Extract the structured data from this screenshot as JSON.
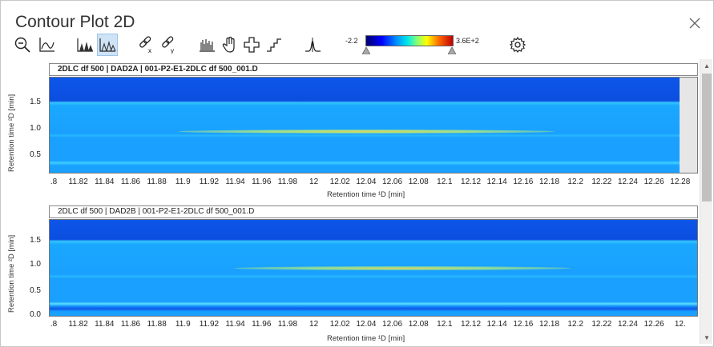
{
  "window": {
    "title": "Contour Plot 2D"
  },
  "toolbar": {
    "items": [
      {
        "name": "zoom-out-icon",
        "active": false
      },
      {
        "name": "axis-chart-icon",
        "active": false
      },
      {
        "name": "peaks-filled-icon",
        "active": false
      },
      {
        "name": "peaks-outline-icon",
        "active": true
      },
      {
        "name": "link-x-icon",
        "active": false
      },
      {
        "name": "link-y-icon",
        "active": false
      },
      {
        "name": "spectrum-icon",
        "active": false
      },
      {
        "name": "hand-pan-icon",
        "active": false
      },
      {
        "name": "crosshair-icon",
        "active": false
      },
      {
        "name": "step-icon",
        "active": false
      },
      {
        "name": "peak-shape-icon",
        "active": false
      },
      {
        "name": "gear-icon",
        "active": false
      }
    ]
  },
  "colorbar": {
    "min_label": "-2.2",
    "max_label": "3.6E+2"
  },
  "colors": {
    "low": "#0a3fd6",
    "background": "#1aa0ff",
    "band": "#33c8ff",
    "peak": "#d8d060"
  },
  "plots": [
    {
      "title": "2DLC df 500 | DAD2A | 001-P2-E1-2DLC df 500_001.D",
      "title_bold": true,
      "ylabel": "Retention time ²D [min]",
      "xlabel": "Retention time ¹D [min]",
      "yticks": [
        "1.5",
        "1.0",
        "0.5"
      ],
      "xticks": [
        ".8",
        "11.82",
        "11.84",
        "11.86",
        "11.88",
        "11.9",
        "11.92",
        "11.94",
        "11.96",
        "11.98",
        "12",
        "12.02",
        "12.04",
        "12.06",
        "12.08",
        "12.1",
        "12.12",
        "12.14",
        "12.16",
        "12.18",
        "12.2",
        "12.22",
        "12.24",
        "12.26",
        "12.28"
      ]
    },
    {
      "title": "2DLC df 500 | DAD2B | 001-P2-E1-2DLC df 500_001.D",
      "title_bold": false,
      "ylabel": "Retention time ²D [min]",
      "xlabel": "Retention time ¹D [min]",
      "yticks": [
        "1.5",
        "1.0",
        "0.5",
        "0.0"
      ],
      "xticks": [
        ".8",
        "11.82",
        "11.84",
        "11.86",
        "11.88",
        "11.9",
        "11.92",
        "11.94",
        "11.96",
        "11.98",
        "12",
        "12.02",
        "12.04",
        "12.06",
        "12.08",
        "12.1",
        "12.12",
        "12.14",
        "12.16",
        "12.18",
        "12.2",
        "12.22",
        "12.24",
        "12.26",
        "12."
      ]
    }
  ]
}
